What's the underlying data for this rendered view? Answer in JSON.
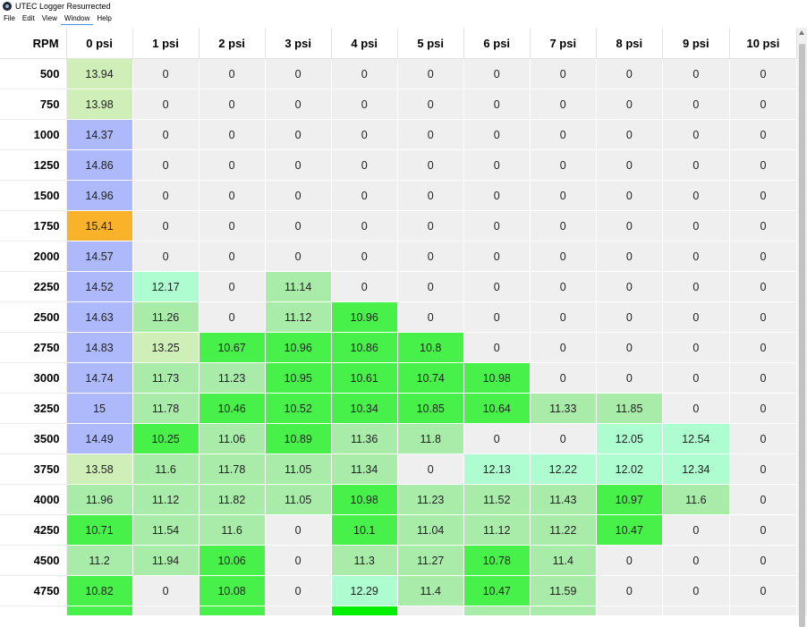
{
  "window": {
    "title": "UTEC Logger Resurrected",
    "icon": "app-logo-icon"
  },
  "menu": [
    {
      "label": "File"
    },
    {
      "label": "Edit"
    },
    {
      "label": "View"
    },
    {
      "label": "Window"
    },
    {
      "label": "Help"
    }
  ],
  "table": {
    "corner_label": "RPM",
    "columns": [
      "0 psi",
      "1 psi",
      "2 psi",
      "3 psi",
      "4 psi",
      "5 psi",
      "6 psi",
      "7 psi",
      "8 psi",
      "9 psi",
      "10 psi"
    ],
    "rows": [
      {
        "rpm": "500",
        "cells": [
          {
            "v": "13.94",
            "c": "#d0eeb8"
          },
          {
            "v": "0",
            "c": "#efefef"
          },
          {
            "v": "0",
            "c": "#efefef"
          },
          {
            "v": "0",
            "c": "#efefef"
          },
          {
            "v": "0",
            "c": "#efefef"
          },
          {
            "v": "0",
            "c": "#efefef"
          },
          {
            "v": "0",
            "c": "#efefef"
          },
          {
            "v": "0",
            "c": "#efefef"
          },
          {
            "v": "0",
            "c": "#efefef"
          },
          {
            "v": "0",
            "c": "#efefef"
          },
          {
            "v": "0",
            "c": "#efefef"
          }
        ]
      },
      {
        "rpm": "750",
        "cells": [
          {
            "v": "13.98",
            "c": "#d0eeb8"
          },
          {
            "v": "0",
            "c": "#efefef"
          },
          {
            "v": "0",
            "c": "#efefef"
          },
          {
            "v": "0",
            "c": "#efefef"
          },
          {
            "v": "0",
            "c": "#efefef"
          },
          {
            "v": "0",
            "c": "#efefef"
          },
          {
            "v": "0",
            "c": "#efefef"
          },
          {
            "v": "0",
            "c": "#efefef"
          },
          {
            "v": "0",
            "c": "#efefef"
          },
          {
            "v": "0",
            "c": "#efefef"
          },
          {
            "v": "0",
            "c": "#efefef"
          }
        ]
      },
      {
        "rpm": "1000",
        "cells": [
          {
            "v": "14.37",
            "c": "#adb9fa"
          },
          {
            "v": "0",
            "c": "#efefef"
          },
          {
            "v": "0",
            "c": "#efefef"
          },
          {
            "v": "0",
            "c": "#efefef"
          },
          {
            "v": "0",
            "c": "#efefef"
          },
          {
            "v": "0",
            "c": "#efefef"
          },
          {
            "v": "0",
            "c": "#efefef"
          },
          {
            "v": "0",
            "c": "#efefef"
          },
          {
            "v": "0",
            "c": "#efefef"
          },
          {
            "v": "0",
            "c": "#efefef"
          },
          {
            "v": "0",
            "c": "#efefef"
          }
        ]
      },
      {
        "rpm": "1250",
        "cells": [
          {
            "v": "14.86",
            "c": "#adb9fa"
          },
          {
            "v": "0",
            "c": "#efefef"
          },
          {
            "v": "0",
            "c": "#efefef"
          },
          {
            "v": "0",
            "c": "#efefef"
          },
          {
            "v": "0",
            "c": "#efefef"
          },
          {
            "v": "0",
            "c": "#efefef"
          },
          {
            "v": "0",
            "c": "#efefef"
          },
          {
            "v": "0",
            "c": "#efefef"
          },
          {
            "v": "0",
            "c": "#efefef"
          },
          {
            "v": "0",
            "c": "#efefef"
          },
          {
            "v": "0",
            "c": "#efefef"
          }
        ]
      },
      {
        "rpm": "1500",
        "cells": [
          {
            "v": "14.96",
            "c": "#adb9fa"
          },
          {
            "v": "0",
            "c": "#efefef"
          },
          {
            "v": "0",
            "c": "#efefef"
          },
          {
            "v": "0",
            "c": "#efefef"
          },
          {
            "v": "0",
            "c": "#efefef"
          },
          {
            "v": "0",
            "c": "#efefef"
          },
          {
            "v": "0",
            "c": "#efefef"
          },
          {
            "v": "0",
            "c": "#efefef"
          },
          {
            "v": "0",
            "c": "#efefef"
          },
          {
            "v": "0",
            "c": "#efefef"
          },
          {
            "v": "0",
            "c": "#efefef"
          }
        ]
      },
      {
        "rpm": "1750",
        "cells": [
          {
            "v": "15.41",
            "c": "#fbb22b"
          },
          {
            "v": "0",
            "c": "#efefef"
          },
          {
            "v": "0",
            "c": "#efefef"
          },
          {
            "v": "0",
            "c": "#efefef"
          },
          {
            "v": "0",
            "c": "#efefef"
          },
          {
            "v": "0",
            "c": "#efefef"
          },
          {
            "v": "0",
            "c": "#efefef"
          },
          {
            "v": "0",
            "c": "#efefef"
          },
          {
            "v": "0",
            "c": "#efefef"
          },
          {
            "v": "0",
            "c": "#efefef"
          },
          {
            "v": "0",
            "c": "#efefef"
          }
        ]
      },
      {
        "rpm": "2000",
        "cells": [
          {
            "v": "14.57",
            "c": "#adb9fa"
          },
          {
            "v": "0",
            "c": "#efefef"
          },
          {
            "v": "0",
            "c": "#efefef"
          },
          {
            "v": "0",
            "c": "#efefef"
          },
          {
            "v": "0",
            "c": "#efefef"
          },
          {
            "v": "0",
            "c": "#efefef"
          },
          {
            "v": "0",
            "c": "#efefef"
          },
          {
            "v": "0",
            "c": "#efefef"
          },
          {
            "v": "0",
            "c": "#efefef"
          },
          {
            "v": "0",
            "c": "#efefef"
          },
          {
            "v": "0",
            "c": "#efefef"
          }
        ]
      },
      {
        "rpm": "2250",
        "cells": [
          {
            "v": "14.52",
            "c": "#adb9fa"
          },
          {
            "v": "12.17",
            "c": "#aefdd0"
          },
          {
            "v": "0",
            "c": "#efefef"
          },
          {
            "v": "11.14",
            "c": "#a9ecaa"
          },
          {
            "v": "0",
            "c": "#efefef"
          },
          {
            "v": "0",
            "c": "#efefef"
          },
          {
            "v": "0",
            "c": "#efefef"
          },
          {
            "v": "0",
            "c": "#efefef"
          },
          {
            "v": "0",
            "c": "#efefef"
          },
          {
            "v": "0",
            "c": "#efefef"
          },
          {
            "v": "0",
            "c": "#efefef"
          }
        ]
      },
      {
        "rpm": "2500",
        "cells": [
          {
            "v": "14.63",
            "c": "#adb9fa"
          },
          {
            "v": "11.26",
            "c": "#a9ecaa"
          },
          {
            "v": "0",
            "c": "#efefef"
          },
          {
            "v": "11.12",
            "c": "#a9ecaa"
          },
          {
            "v": "10.96",
            "c": "#48f04a"
          },
          {
            "v": "0",
            "c": "#efefef"
          },
          {
            "v": "0",
            "c": "#efefef"
          },
          {
            "v": "0",
            "c": "#efefef"
          },
          {
            "v": "0",
            "c": "#efefef"
          },
          {
            "v": "0",
            "c": "#efefef"
          },
          {
            "v": "0",
            "c": "#efefef"
          }
        ]
      },
      {
        "rpm": "2750",
        "cells": [
          {
            "v": "14.83",
            "c": "#adb9fa"
          },
          {
            "v": "13.25",
            "c": "#d0eeb8"
          },
          {
            "v": "10.67",
            "c": "#48f04a"
          },
          {
            "v": "10.96",
            "c": "#48f04a"
          },
          {
            "v": "10.86",
            "c": "#48f04a"
          },
          {
            "v": "10.8",
            "c": "#48f04a"
          },
          {
            "v": "0",
            "c": "#efefef"
          },
          {
            "v": "0",
            "c": "#efefef"
          },
          {
            "v": "0",
            "c": "#efefef"
          },
          {
            "v": "0",
            "c": "#efefef"
          },
          {
            "v": "0",
            "c": "#efefef"
          }
        ]
      },
      {
        "rpm": "3000",
        "cells": [
          {
            "v": "14.74",
            "c": "#adb9fa"
          },
          {
            "v": "11.73",
            "c": "#a9ecaa"
          },
          {
            "v": "11.23",
            "c": "#a9ecaa"
          },
          {
            "v": "10.95",
            "c": "#48f04a"
          },
          {
            "v": "10.61",
            "c": "#48f04a"
          },
          {
            "v": "10.74",
            "c": "#48f04a"
          },
          {
            "v": "10.98",
            "c": "#48f04a"
          },
          {
            "v": "0",
            "c": "#efefef"
          },
          {
            "v": "0",
            "c": "#efefef"
          },
          {
            "v": "0",
            "c": "#efefef"
          },
          {
            "v": "0",
            "c": "#efefef"
          }
        ]
      },
      {
        "rpm": "3250",
        "cells": [
          {
            "v": "15",
            "c": "#adb9fa"
          },
          {
            "v": "11.78",
            "c": "#a9ecaa"
          },
          {
            "v": "10.46",
            "c": "#48f04a"
          },
          {
            "v": "10.52",
            "c": "#48f04a"
          },
          {
            "v": "10.34",
            "c": "#48f04a"
          },
          {
            "v": "10.85",
            "c": "#48f04a"
          },
          {
            "v": "10.64",
            "c": "#48f04a"
          },
          {
            "v": "11.33",
            "c": "#a9ecaa"
          },
          {
            "v": "11.85",
            "c": "#a9ecaa"
          },
          {
            "v": "0",
            "c": "#efefef"
          },
          {
            "v": "0",
            "c": "#efefef"
          }
        ]
      },
      {
        "rpm": "3500",
        "cells": [
          {
            "v": "14.49",
            "c": "#adb9fa"
          },
          {
            "v": "10.25",
            "c": "#48f04a"
          },
          {
            "v": "11.06",
            "c": "#a9ecaa"
          },
          {
            "v": "10.89",
            "c": "#48f04a"
          },
          {
            "v": "11.36",
            "c": "#a9ecaa"
          },
          {
            "v": "11.8",
            "c": "#a9ecaa"
          },
          {
            "v": "0",
            "c": "#efefef"
          },
          {
            "v": "0",
            "c": "#efefef"
          },
          {
            "v": "12.05",
            "c": "#aefdd0"
          },
          {
            "v": "12.54",
            "c": "#aefdd0"
          },
          {
            "v": "0",
            "c": "#efefef"
          }
        ]
      },
      {
        "rpm": "3750",
        "cells": [
          {
            "v": "13.58",
            "c": "#d0eeb8"
          },
          {
            "v": "11.6",
            "c": "#a9ecaa"
          },
          {
            "v": "11.78",
            "c": "#a9ecaa"
          },
          {
            "v": "11.05",
            "c": "#a9ecaa"
          },
          {
            "v": "11.34",
            "c": "#a9ecaa"
          },
          {
            "v": "0",
            "c": "#efefef"
          },
          {
            "v": "12.13",
            "c": "#aefdd0"
          },
          {
            "v": "12.22",
            "c": "#aefdd0"
          },
          {
            "v": "12.02",
            "c": "#aefdd0"
          },
          {
            "v": "12.34",
            "c": "#aefdd0"
          },
          {
            "v": "0",
            "c": "#efefef"
          }
        ]
      },
      {
        "rpm": "4000",
        "cells": [
          {
            "v": "11.96",
            "c": "#a9ecaa"
          },
          {
            "v": "11.12",
            "c": "#a9ecaa"
          },
          {
            "v": "11.82",
            "c": "#a9ecaa"
          },
          {
            "v": "11.05",
            "c": "#a9ecaa"
          },
          {
            "v": "10.98",
            "c": "#48f04a"
          },
          {
            "v": "11.23",
            "c": "#a9ecaa"
          },
          {
            "v": "11.52",
            "c": "#a9ecaa"
          },
          {
            "v": "11.43",
            "c": "#a9ecaa"
          },
          {
            "v": "10.97",
            "c": "#48f04a"
          },
          {
            "v": "11.6",
            "c": "#a9ecaa"
          },
          {
            "v": "0",
            "c": "#efefef"
          }
        ]
      },
      {
        "rpm": "4250",
        "cells": [
          {
            "v": "10.71",
            "c": "#48f04a"
          },
          {
            "v": "11.54",
            "c": "#a9ecaa"
          },
          {
            "v": "11.6",
            "c": "#a9ecaa"
          },
          {
            "v": "0",
            "c": "#efefef"
          },
          {
            "v": "10.1",
            "c": "#48f04a"
          },
          {
            "v": "11.04",
            "c": "#a9ecaa"
          },
          {
            "v": "11.12",
            "c": "#a9ecaa"
          },
          {
            "v": "11.22",
            "c": "#a9ecaa"
          },
          {
            "v": "10.47",
            "c": "#48f04a"
          },
          {
            "v": "0",
            "c": "#efefef"
          },
          {
            "v": "0",
            "c": "#efefef"
          }
        ]
      },
      {
        "rpm": "4500",
        "cells": [
          {
            "v": "11.2",
            "c": "#a9ecaa"
          },
          {
            "v": "11.94",
            "c": "#a9ecaa"
          },
          {
            "v": "10.06",
            "c": "#48f04a"
          },
          {
            "v": "0",
            "c": "#efefef"
          },
          {
            "v": "11.3",
            "c": "#a9ecaa"
          },
          {
            "v": "11.27",
            "c": "#a9ecaa"
          },
          {
            "v": "10.78",
            "c": "#48f04a"
          },
          {
            "v": "11.4",
            "c": "#a9ecaa"
          },
          {
            "v": "0",
            "c": "#efefef"
          },
          {
            "v": "0",
            "c": "#efefef"
          },
          {
            "v": "0",
            "c": "#efefef"
          }
        ]
      },
      {
        "rpm": "4750",
        "cells": [
          {
            "v": "10.82",
            "c": "#48f04a"
          },
          {
            "v": "0",
            "c": "#efefef"
          },
          {
            "v": "10.08",
            "c": "#48f04a"
          },
          {
            "v": "0",
            "c": "#efefef"
          },
          {
            "v": "12.29",
            "c": "#aefdd0"
          },
          {
            "v": "11.4",
            "c": "#a9ecaa"
          },
          {
            "v": "10.47",
            "c": "#48f04a"
          },
          {
            "v": "11.59",
            "c": "#a9ecaa"
          },
          {
            "v": "0",
            "c": "#efefef"
          },
          {
            "v": "0",
            "c": "#efefef"
          },
          {
            "v": "0",
            "c": "#efefef"
          }
        ]
      },
      {
        "rpm": "",
        "cells": [
          {
            "v": "",
            "c": "#48f04a"
          },
          {
            "v": "",
            "c": "#efefef"
          },
          {
            "v": "",
            "c": "#48f04a"
          },
          {
            "v": "",
            "c": "#efefef"
          },
          {
            "v": "",
            "c": "#00f000"
          },
          {
            "v": "",
            "c": "#efefef"
          },
          {
            "v": "",
            "c": "#a9ecaa"
          },
          {
            "v": "",
            "c": "#a9ecaa"
          },
          {
            "v": "",
            "c": "#efefef"
          },
          {
            "v": "",
            "c": "#efefef"
          },
          {
            "v": "",
            "c": "#efefef"
          }
        ]
      }
    ]
  },
  "scrollbar": {
    "icon": "scroll-up-arrow-icon"
  }
}
